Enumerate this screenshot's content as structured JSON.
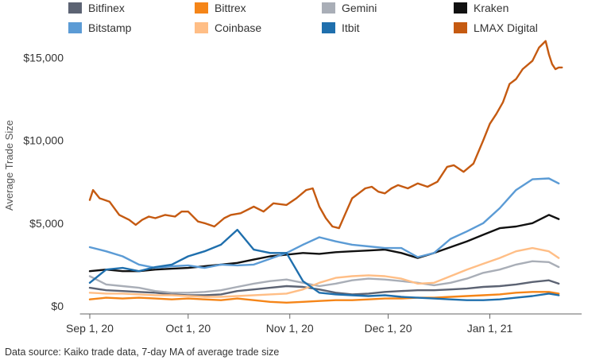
{
  "chart_data": {
    "type": "line",
    "ylabel": "Average Trade Size",
    "ylim": [
      0,
      16500
    ],
    "y_ticks": [
      {
        "value": 0,
        "label": "$0"
      },
      {
        "value": 5000,
        "label": "$5,000"
      },
      {
        "value": 10000,
        "label": "$10,000"
      },
      {
        "value": 15000,
        "label": "$15,000"
      }
    ],
    "x_range": [
      -3,
      150
    ],
    "x_ticks": [
      {
        "value": 0,
        "label": "Sep 1, 20"
      },
      {
        "value": 30,
        "label": "Oct 1, 20"
      },
      {
        "value": 61,
        "label": "Nov 1, 20"
      },
      {
        "value": 91,
        "label": "Dec 1, 20"
      },
      {
        "value": 122,
        "label": "Jan 1, 21"
      }
    ],
    "x_unit": "days since Sep 1, 2020",
    "series": [
      {
        "name": "Bitfinex",
        "color": "#5c6373",
        "x": [
          0,
          5,
          10,
          15,
          20,
          25,
          30,
          35,
          40,
          45,
          50,
          55,
          60,
          65,
          70,
          75,
          80,
          85,
          90,
          95,
          100,
          105,
          110,
          115,
          120,
          125,
          130,
          135,
          140,
          143
        ],
        "values": [
          1100,
          950,
          900,
          850,
          800,
          700,
          650,
          650,
          700,
          900,
          1000,
          1100,
          1200,
          1150,
          1000,
          800,
          700,
          750,
          850,
          900,
          950,
          950,
          1000,
          1050,
          1150,
          1200,
          1300,
          1450,
          1550,
          1350
        ]
      },
      {
        "name": "Bittrex",
        "color": "#f58518",
        "x": [
          0,
          5,
          10,
          15,
          20,
          25,
          30,
          35,
          40,
          45,
          50,
          55,
          60,
          65,
          70,
          75,
          80,
          85,
          90,
          95,
          100,
          105,
          110,
          115,
          120,
          125,
          130,
          135,
          140,
          143
        ],
        "values": [
          400,
          500,
          450,
          500,
          450,
          400,
          450,
          400,
          350,
          450,
          350,
          250,
          200,
          250,
          300,
          350,
          350,
          400,
          450,
          450,
          500,
          500,
          550,
          600,
          650,
          700,
          800,
          850,
          850,
          750
        ]
      },
      {
        "name": "Gemini",
        "color": "#a9aeb7",
        "x": [
          0,
          5,
          10,
          15,
          20,
          25,
          30,
          35,
          40,
          45,
          50,
          55,
          60,
          65,
          70,
          75,
          80,
          85,
          90,
          95,
          100,
          105,
          110,
          115,
          120,
          125,
          130,
          135,
          140,
          143
        ],
        "values": [
          1800,
          1300,
          1200,
          1100,
          900,
          800,
          800,
          850,
          950,
          1150,
          1350,
          1500,
          1600,
          1400,
          1200,
          1350,
          1550,
          1650,
          1600,
          1500,
          1400,
          1250,
          1400,
          1650,
          2000,
          2200,
          2500,
          2700,
          2650,
          2350
        ]
      },
      {
        "name": "Kraken",
        "color": "#111111",
        "x": [
          0,
          5,
          10,
          15,
          20,
          25,
          30,
          35,
          40,
          45,
          50,
          55,
          60,
          65,
          70,
          75,
          80,
          85,
          90,
          95,
          100,
          105,
          110,
          115,
          120,
          125,
          130,
          135,
          140,
          143
        ],
        "values": [
          2100,
          2200,
          2100,
          2100,
          2200,
          2250,
          2300,
          2400,
          2500,
          2600,
          2800,
          3000,
          3100,
          3200,
          3150,
          3250,
          3300,
          3350,
          3400,
          3200,
          2900,
          3200,
          3550,
          3900,
          4300,
          4700,
          4800,
          5000,
          5500,
          5250
        ]
      },
      {
        "name": "Bitstamp",
        "color": "#5b9bd5",
        "x": [
          0,
          5,
          10,
          15,
          20,
          25,
          30,
          35,
          40,
          45,
          50,
          55,
          60,
          65,
          70,
          75,
          80,
          85,
          90,
          95,
          100,
          105,
          110,
          115,
          120,
          125,
          130,
          135,
          140,
          143
        ],
        "values": [
          3550,
          3300,
          3000,
          2500,
          2300,
          2400,
          2450,
          2300,
          2500,
          2450,
          2500,
          2850,
          3200,
          3700,
          4150,
          3900,
          3700,
          3600,
          3500,
          3500,
          2950,
          3200,
          4050,
          4500,
          5000,
          5900,
          7000,
          7650,
          7700,
          7400
        ]
      },
      {
        "name": "Coinbase",
        "color": "#ffbe86",
        "x": [
          0,
          5,
          10,
          15,
          20,
          25,
          30,
          35,
          40,
          45,
          50,
          55,
          60,
          65,
          70,
          75,
          80,
          85,
          90,
          95,
          100,
          105,
          110,
          115,
          120,
          125,
          130,
          135,
          140,
          143
        ],
        "values": [
          800,
          750,
          750,
          700,
          650,
          650,
          600,
          550,
          550,
          600,
          650,
          700,
          750,
          1000,
          1400,
          1700,
          1800,
          1850,
          1800,
          1650,
          1350,
          1400,
          1800,
          2200,
          2550,
          2900,
          3300,
          3500,
          3300,
          2900
        ]
      },
      {
        "name": "Itbit",
        "color": "#1f6fad",
        "x": [
          0,
          5,
          10,
          15,
          20,
          25,
          30,
          35,
          40,
          45,
          50,
          55,
          60,
          65,
          70,
          75,
          80,
          85,
          90,
          95,
          100,
          105,
          110,
          115,
          120,
          125,
          130,
          135,
          140,
          143
        ],
        "values": [
          1400,
          2200,
          2300,
          2100,
          2350,
          2500,
          3000,
          3300,
          3700,
          4600,
          3400,
          3200,
          3200,
          1500,
          800,
          700,
          650,
          600,
          650,
          550,
          500,
          450,
          400,
          350,
          350,
          400,
          500,
          600,
          750,
          650
        ]
      },
      {
        "name": "LMAX Digital",
        "color": "#c55a11",
        "x": [
          0,
          1,
          3,
          6,
          9,
          12,
          14,
          16,
          18,
          20,
          23,
          26,
          28,
          30,
          33,
          35,
          38,
          41,
          43,
          46,
          50,
          53,
          56,
          60,
          63,
          66,
          68,
          70,
          72,
          74,
          76,
          78,
          80,
          82,
          84,
          86,
          88,
          90,
          92,
          94,
          97,
          100,
          103,
          106,
          109,
          111,
          114,
          117,
          120,
          122,
          124,
          126,
          128,
          130,
          132,
          135,
          137,
          139,
          140,
          141,
          142,
          143,
          144
        ],
        "values": [
          6400,
          7000,
          6500,
          6300,
          5500,
          5200,
          4900,
          5200,
          5400,
          5300,
          5500,
          5400,
          5700,
          5700,
          5100,
          5000,
          4800,
          5300,
          5500,
          5600,
          6000,
          5700,
          6200,
          6100,
          6500,
          7000,
          7100,
          6000,
          5300,
          4800,
          4700,
          5600,
          6500,
          6800,
          7100,
          7200,
          6900,
          6800,
          7100,
          7300,
          7100,
          7400,
          7200,
          7500,
          8400,
          8500,
          8100,
          8600,
          10000,
          11000,
          11600,
          12300,
          13400,
          13700,
          14300,
          14800,
          15600,
          16000,
          15200,
          14600,
          14300,
          14400,
          14400
        ]
      }
    ],
    "legend_position": "top",
    "grid": false
  },
  "source_note": "Data source: Kaiko trade data, 7-day MA of average trade size"
}
